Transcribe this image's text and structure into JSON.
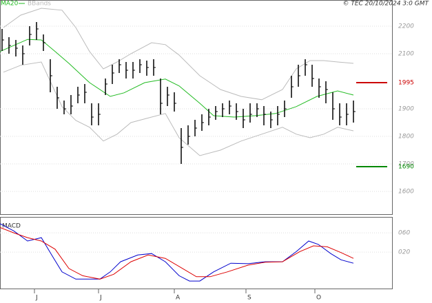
{
  "chart_data": [
    {
      "type": "ohlc",
      "copyright": "© TEC 20/10/2024 3:0 GMT",
      "xlim": [
        -0.3,
        56.7
      ],
      "ylim": [
        1515,
        2295
      ],
      "yticks": [
        2200,
        2100,
        1900,
        1800,
        1700,
        1600
      ],
      "grid": true,
      "bars": {
        "color": "#000",
        "x": [
          0,
          1,
          2,
          3,
          4,
          5,
          6,
          7,
          8,
          9,
          10,
          11,
          12,
          13,
          14,
          15,
          16,
          17,
          18,
          19,
          20,
          21,
          22,
          23,
          24,
          25,
          26,
          27,
          28,
          29,
          30,
          31,
          32,
          33,
          34,
          35,
          36,
          37,
          38,
          39,
          40,
          41,
          42,
          43,
          44,
          45,
          46,
          47,
          48,
          49,
          50,
          51
        ],
        "high": [
          2190,
          2160,
          2150,
          2130,
          2200,
          2215,
          2170,
          2080,
          1980,
          1930,
          1950,
          1980,
          1990,
          1920,
          1920,
          2010,
          2060,
          2080,
          2070,
          2070,
          2080,
          2075,
          2080,
          2010,
          1980,
          1960,
          1830,
          1840,
          1860,
          1880,
          1900,
          1910,
          1920,
          1930,
          1920,
          1900,
          1920,
          1920,
          1910,
          1890,
          1910,
          1930,
          2020,
          2060,
          2080,
          2060,
          2010,
          2000,
          1960,
          1920,
          1920,
          1930
        ],
        "low": [
          2110,
          2100,
          2090,
          2060,
          2130,
          2150,
          2110,
          1960,
          1900,
          1880,
          1880,
          1920,
          1920,
          1840,
          1840,
          1950,
          1990,
          2030,
          2010,
          2010,
          2030,
          2020,
          2020,
          1880,
          1910,
          1890,
          1700,
          1770,
          1800,
          1820,
          1840,
          1860,
          1870,
          1880,
          1860,
          1830,
          1850,
          1870,
          1840,
          1830,
          1840,
          1870,
          1940,
          1980,
          2020,
          1980,
          1940,
          1920,
          1860,
          1840,
          1840,
          1850
        ],
        "close": [
          2150,
          2130,
          2120,
          2100,
          2170,
          2190,
          2140,
          2020,
          1940,
          1900,
          1910,
          1950,
          1960,
          1870,
          1880,
          1990,
          2030,
          2060,
          2040,
          2040,
          2060,
          2050,
          2050,
          1920,
          1950,
          1920,
          1760,
          1800,
          1830,
          1850,
          1870,
          1890,
          1900,
          1910,
          1890,
          1860,
          1880,
          1900,
          1880,
          1860,
          1880,
          1900,
          1980,
          2020,
          2060,
          2010,
          1980,
          1970,
          1900,
          1870,
          1880,
          1890
        ]
      },
      "series": [
        {
          "name": "MA20",
          "color": "#22bb22",
          "x": [
            -0.3,
            3.7,
            5.7,
            7.7,
            9.7,
            12.7,
            15.7,
            17.7,
            20.7,
            23.7,
            25.7,
            28.7,
            30.7,
            33.7,
            36.7,
            39.7,
            42.7,
            45.7,
            48.7,
            51
          ],
          "values": [
            2108,
            2152,
            2150,
            2108,
            2065,
            1995,
            1945,
            1958,
            1995,
            2008,
            1983,
            1920,
            1875,
            1870,
            1875,
            1883,
            1908,
            1945,
            1965,
            1950
          ]
        }
      ],
      "bands": {
        "name": "BBands",
        "color": "#bbbbbb",
        "x": [
          0.2,
          2.7,
          5.7,
          8.7,
          10.7,
          12.7,
          14.7,
          16.7,
          18.7,
          21.7,
          23.7,
          25.7,
          28.7,
          31.7,
          34.7,
          37.7,
          40.7,
          42.7,
          44.7,
          46.7,
          48.7,
          51
        ],
        "upper": [
          2195,
          2240,
          2265,
          2258,
          2195,
          2108,
          2045,
          2070,
          2100,
          2140,
          2133,
          2095,
          2020,
          1970,
          1945,
          1933,
          1970,
          2045,
          2075,
          2075,
          2070,
          2065
        ],
        "lower": [
          2033,
          2058,
          2070,
          1908,
          1858,
          1833,
          1783,
          1808,
          1850,
          1870,
          1883,
          1795,
          1730,
          1750,
          1783,
          1808,
          1833,
          1808,
          1795,
          1808,
          1833,
          1820
        ]
      },
      "levels": [
        {
          "value": 1995,
          "color": "#cc0000"
        },
        {
          "value": 1690,
          "color": "#008800"
        }
      ]
    },
    {
      "type": "line",
      "title": "MACD",
      "xlim": [
        -0.3,
        56.7
      ],
      "ylim": [
        -57,
        93
      ],
      "yticks": [
        {
          "value": 60,
          "label": "060"
        },
        {
          "value": 20,
          "label": "020"
        }
      ],
      "grid": true,
      "xticks": [
        {
          "value": 4.7,
          "label": "J"
        },
        {
          "value": 14,
          "label": "J"
        },
        {
          "value": 25,
          "label": "A"
        },
        {
          "value": 35.4,
          "label": "S"
        },
        {
          "value": 45.4,
          "label": "O"
        }
      ],
      "series": [
        {
          "color": "#0000cc",
          "x": [
            -0.3,
            1.7,
            3.7,
            5.7,
            7.2,
            8.7,
            10.7,
            12.7,
            14.2,
            15.7,
            17.2,
            19.7,
            21.7,
            23.7,
            25.7,
            27.2,
            28.7,
            30.7,
            33.2,
            35.7,
            38.2,
            40.7,
            42.7,
            44.5,
            45.9,
            47.7,
            49.2,
            51
          ],
          "values": [
            79,
            64,
            43,
            50,
            14,
            -21,
            -36,
            -36,
            -36,
            -21,
            0,
            14,
            17,
            0,
            -29,
            -40,
            -40,
            -21,
            -3,
            -4,
            0,
            0,
            21,
            43,
            36,
            17,
            4,
            -3
          ]
        },
        {
          "color": "#dd0000",
          "x": [
            -0.3,
            1.7,
            3.7,
            5.7,
            7.7,
            9.7,
            11.7,
            14.2,
            16.2,
            18.7,
            21.2,
            23.7,
            26.2,
            28.2,
            30.2,
            32.7,
            35.7,
            38.2,
            40.7,
            43.2,
            45.2,
            47.2,
            49.2,
            51
          ],
          "values": [
            71,
            60,
            50,
            43,
            26,
            -14,
            -29,
            -36,
            -26,
            0,
            14,
            7,
            -14,
            -31,
            -31,
            -21,
            -7,
            -1,
            0,
            21,
            33,
            31,
            19,
            7
          ]
        }
      ]
    }
  ]
}
